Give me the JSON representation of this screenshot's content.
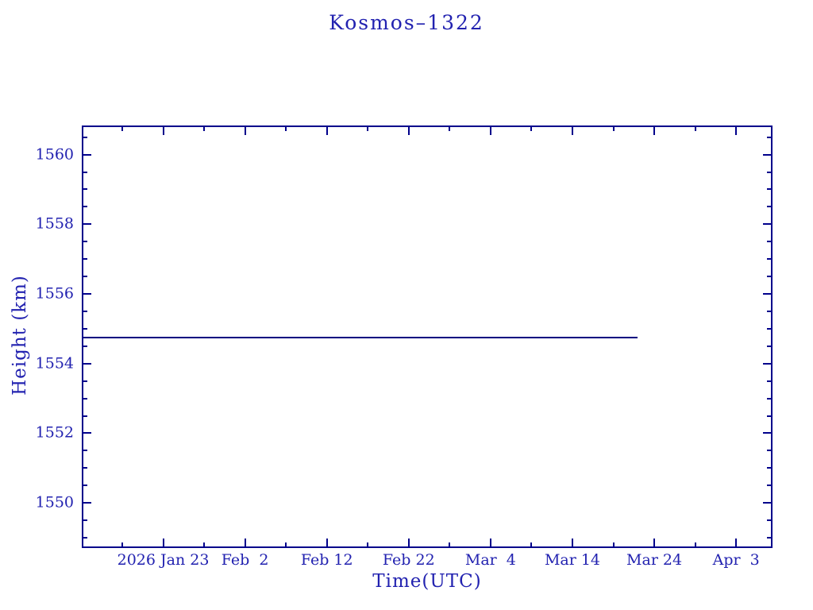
{
  "page": {
    "background": "#ffffff"
  },
  "chart_data": {
    "type": "line",
    "title": "Kosmos–1322",
    "xlabel": "Time(UTC)",
    "ylabel": "Height (km)",
    "grid": false,
    "legend": "none",
    "colors": {
      "text": "#2222b0",
      "axis": "#00008b",
      "line": "#000080"
    },
    "x_axis": {
      "min": "2026-01-13T06:00:00Z",
      "max": "2026-04-07T06:00:00Z",
      "major_ticks": [
        {
          "date": "2026-01-23T00:00:00Z",
          "label": "2026 Jan 23"
        },
        {
          "date": "2026-02-02T00:00:00Z",
          "label": "Feb  2"
        },
        {
          "date": "2026-02-12T00:00:00Z",
          "label": "Feb 12"
        },
        {
          "date": "2026-02-22T00:00:00Z",
          "label": "Feb 22"
        },
        {
          "date": "2026-03-04T00:00:00Z",
          "label": "Mar  4"
        },
        {
          "date": "2026-03-14T00:00:00Z",
          "label": "Mar 14"
        },
        {
          "date": "2026-03-24T00:00:00Z",
          "label": "Mar 24"
        },
        {
          "date": "2026-04-03T00:00:00Z",
          "label": "Apr  3"
        }
      ],
      "minor_ticks": [
        "2026-01-18T00:00:00Z",
        "2026-01-28T00:00:00Z",
        "2026-02-07T00:00:00Z",
        "2026-02-17T00:00:00Z",
        "2026-02-27T00:00:00Z",
        "2026-03-09T00:00:00Z",
        "2026-03-19T00:00:00Z",
        "2026-03-29T00:00:00Z"
      ]
    },
    "y_axis": {
      "min": 1548.75,
      "max": 1560.79,
      "major_ticks": [
        1550,
        1552,
        1554,
        1556,
        1558,
        1560
      ],
      "minor_step": 0.5
    },
    "series": [
      {
        "name": "height",
        "points": [
          {
            "t": "2026-01-13T06:00:00Z",
            "km": 1554.75
          },
          {
            "t": "2026-03-22T00:00:00Z",
            "km": 1554.75
          }
        ]
      }
    ]
  }
}
